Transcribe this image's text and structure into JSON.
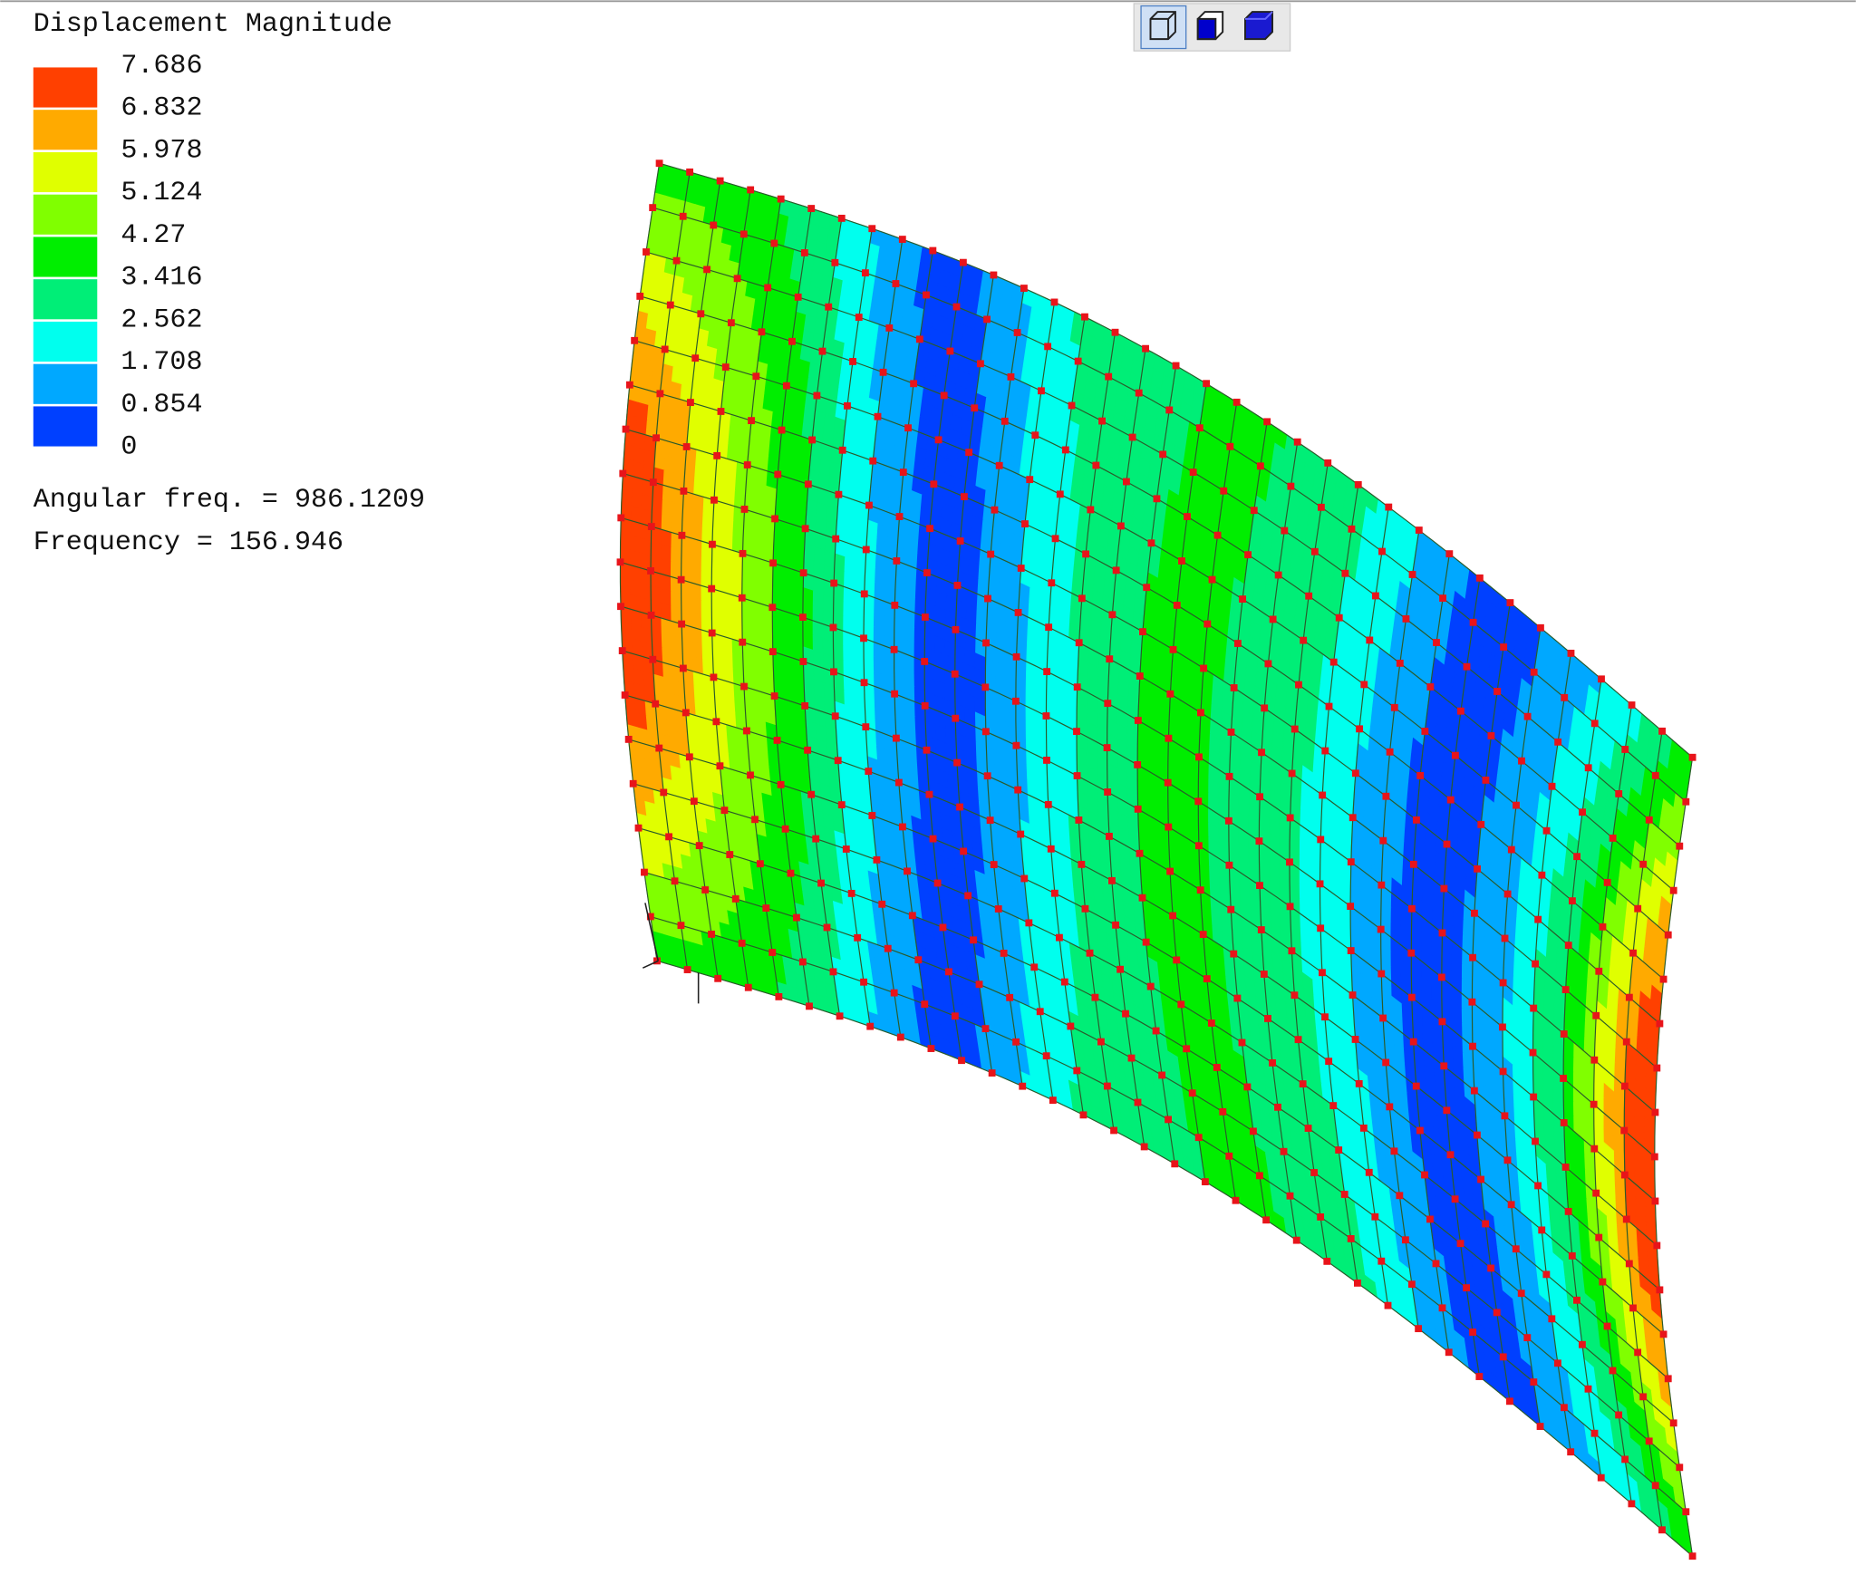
{
  "legend": {
    "title": "Displacement Magnitude",
    "labels": [
      "7.686",
      "6.832",
      "5.978",
      "5.124",
      "4.27",
      "3.416",
      "2.562",
      "1.708",
      "0.854",
      "0"
    ]
  },
  "info": {
    "angular_frequency": "Angular freq. = 986.1209",
    "frequency": "Frequency = 156.946"
  }
}
